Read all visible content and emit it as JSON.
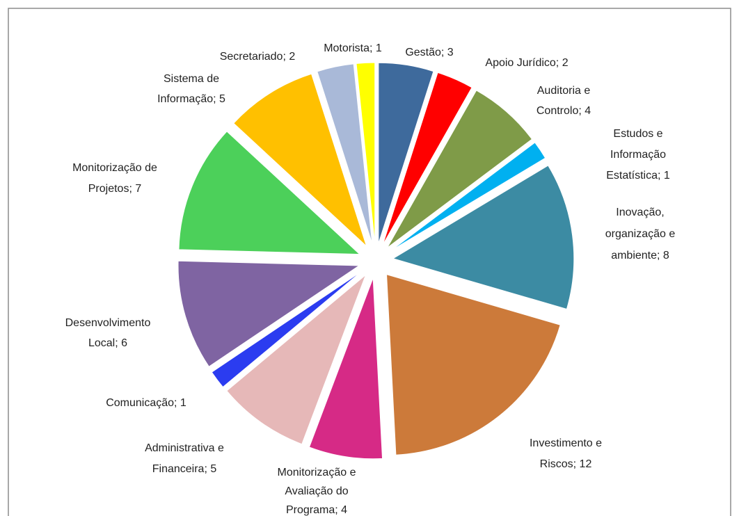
{
  "chart_data": {
    "type": "pie",
    "labels": [
      [
        "Gestão; 3"
      ],
      [
        "Apoio Jurídico; 2"
      ],
      [
        "Auditoria e",
        "Controlo; 4"
      ],
      [
        "Estudos e",
        "Informação",
        "Estatística; 1"
      ],
      [
        "Inovação,",
        "organização e",
        "ambiente; 8"
      ],
      [
        "Investimento e",
        "Riscos; 12"
      ],
      [
        "Monitorização e",
        "Avaliação do",
        "Programa; 4"
      ],
      [
        "Administrativa e",
        "Financeira; 5"
      ],
      [
        "Comunicação; 1"
      ],
      [
        "Desenvolvimento",
        "Local; 6"
      ],
      [
        "Monitorização de",
        "Projetos; 7"
      ],
      [
        "Sistema de",
        "Informação; 5"
      ],
      [
        "Secretariado; 2"
      ],
      [
        "Motorista; 1"
      ]
    ],
    "values": [
      3,
      2,
      4,
      1,
      8,
      12,
      4,
      5,
      1,
      6,
      7,
      5,
      2,
      1
    ],
    "colors": [
      "#3e6a9c",
      "#ff0000",
      "#7f9b48",
      "#00b0f0",
      "#3c8ba3",
      "#cc7a3a",
      "#d62a86",
      "#e6b8b8",
      "#2b3cf0",
      "#7f64a2",
      "#4cd05a",
      "#ffc000",
      "#a9b9d8",
      "#ffff00"
    ]
  }
}
